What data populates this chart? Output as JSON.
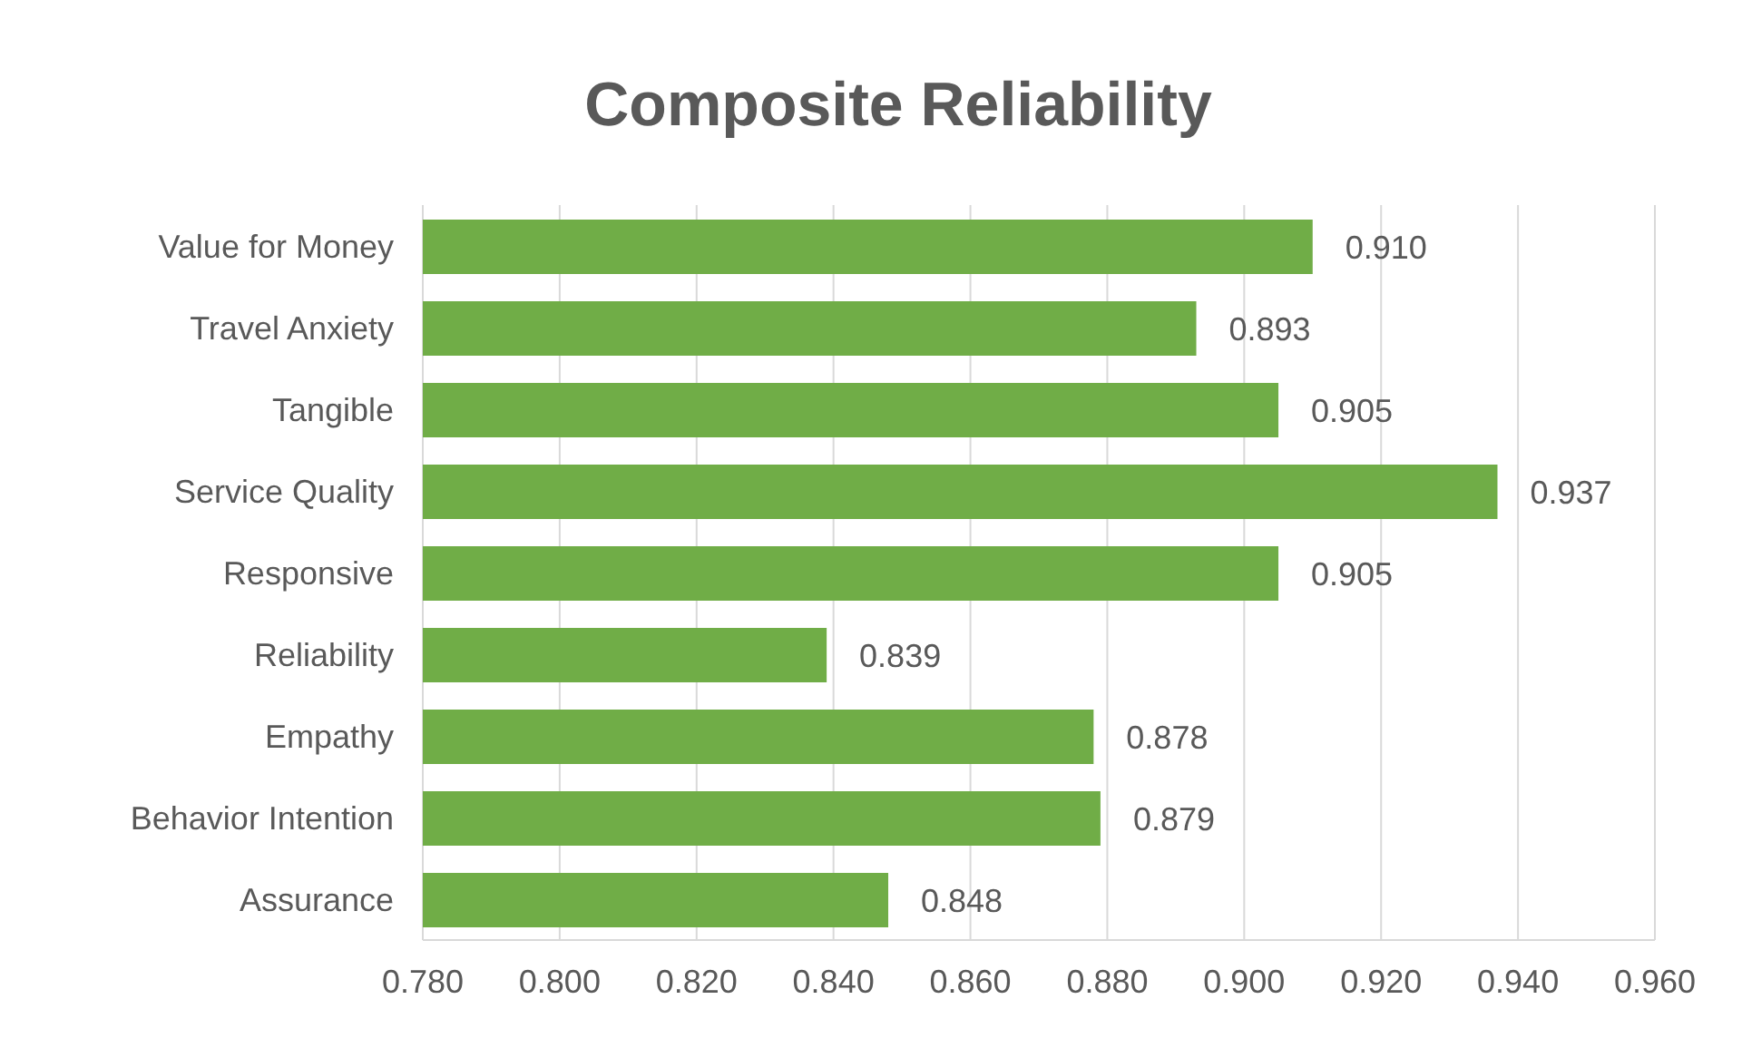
{
  "chart_data": {
    "type": "bar",
    "orientation": "horizontal",
    "title": "Composite Reliability",
    "categories": [
      "Value for Money",
      "Travel Anxiety",
      "Tangible",
      "Service Quality",
      "Responsive",
      "Reliability",
      "Empathy",
      "Behavior Intention",
      "Assurance"
    ],
    "values": [
      0.91,
      0.893,
      0.905,
      0.937,
      0.905,
      0.839,
      0.878,
      0.879,
      0.848
    ],
    "value_labels": [
      "0.910",
      "0.893",
      "0.905",
      "0.937",
      "0.905",
      "0.839",
      "0.878",
      "0.879",
      "0.848"
    ],
    "color": "#70ad47",
    "xlim": [
      0.78,
      0.96
    ],
    "xticks": [
      {
        "value": 0.78,
        "label": "0.780"
      },
      {
        "value": 0.8,
        "label": "0.800"
      },
      {
        "value": 0.82,
        "label": "0.820"
      },
      {
        "value": 0.84,
        "label": "0.840"
      },
      {
        "value": 0.86,
        "label": "0.860"
      },
      {
        "value": 0.88,
        "label": "0.880"
      },
      {
        "value": 0.9,
        "label": "0.900"
      },
      {
        "value": 0.92,
        "label": "0.920"
      },
      {
        "value": 0.94,
        "label": "0.940"
      },
      {
        "value": 0.96,
        "label": "0.960"
      }
    ],
    "grid": "x"
  }
}
